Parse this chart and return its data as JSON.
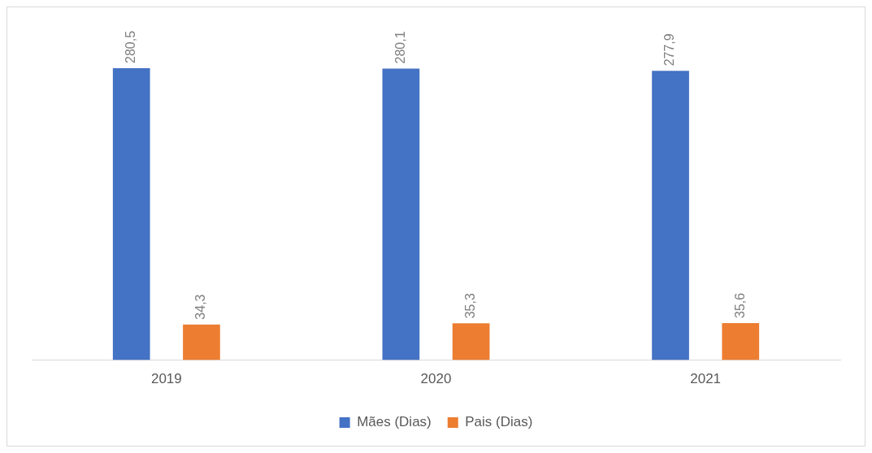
{
  "chart_data": {
    "type": "bar",
    "categories": [
      "2019",
      "2020",
      "2021"
    ],
    "series": [
      {
        "name": "Mães (Dias)",
        "color": "#4472c4",
        "values": [
          280.5,
          280.1,
          277.9
        ],
        "value_labels": [
          "280,5",
          "280,1",
          "277,9"
        ]
      },
      {
        "name": "Pais (Dias)",
        "color": "#ed7d31",
        "values": [
          34.3,
          35.3,
          35.6
        ],
        "value_labels": [
          "34,3",
          "35,3",
          "35,6"
        ]
      }
    ],
    "legend": "bottom",
    "grid": false
  }
}
